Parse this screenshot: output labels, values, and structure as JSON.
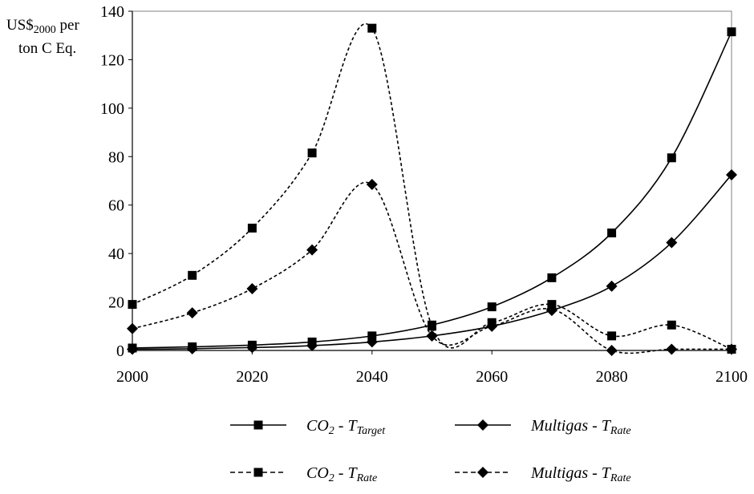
{
  "chart_data": {
    "type": "line",
    "ylabel_line1_main": "US$",
    "ylabel_line1_sub": "2000",
    "ylabel_line1_tail": " per",
    "ylabel_line2": "ton C Eq.",
    "xlim": [
      2000,
      2100
    ],
    "ylim": [
      0,
      140
    ],
    "x_ticks": [
      2000,
      2020,
      2040,
      2060,
      2080,
      2100
    ],
    "y_ticks": [
      0,
      20,
      40,
      60,
      80,
      100,
      120,
      140
    ],
    "x": [
      2000,
      2010,
      2020,
      2030,
      2040,
      2050,
      2060,
      2070,
      2080,
      2090,
      2100
    ],
    "grid": false,
    "legend_position": "bottom",
    "series": [
      {
        "name": "CO2 - TTarget",
        "legend_main": "CO",
        "legend_sub1": "2",
        "legend_mid": " - T",
        "legend_sub2": "Target",
        "marker": "square",
        "line_style": "solid",
        "values": [
          1,
          1.5,
          2.2,
          3.5,
          6,
          10.5,
          18,
          30,
          48.5,
          79.5,
          131.5
        ]
      },
      {
        "name": "CO2 - TRate",
        "legend_main": "CO",
        "legend_sub1": "2",
        "legend_mid": " - T",
        "legend_sub2": "Rate",
        "marker": "square",
        "line_style": "dashed",
        "values": [
          19,
          31,
          50.5,
          81.5,
          133,
          10,
          11.5,
          19,
          6,
          10.5,
          0.5
        ]
      },
      {
        "name": "Multigas - TRate",
        "legend_main": "Multigas - T",
        "legend_sub2": "Rate",
        "marker": "diamond",
        "line_style": "solid",
        "values": [
          0.5,
          0.7,
          1.2,
          2,
          3.5,
          6,
          10,
          16.5,
          26.5,
          44.5,
          72.5
        ]
      },
      {
        "name": "Multigas - TRate",
        "legend_main": "Multigas - T",
        "legend_sub2": "Rate",
        "marker": "diamond",
        "line_style": "dashed",
        "values": [
          9,
          15.5,
          25.5,
          41.5,
          68.5,
          6,
          10,
          17,
          0,
          0.5,
          0.5
        ]
      }
    ]
  }
}
